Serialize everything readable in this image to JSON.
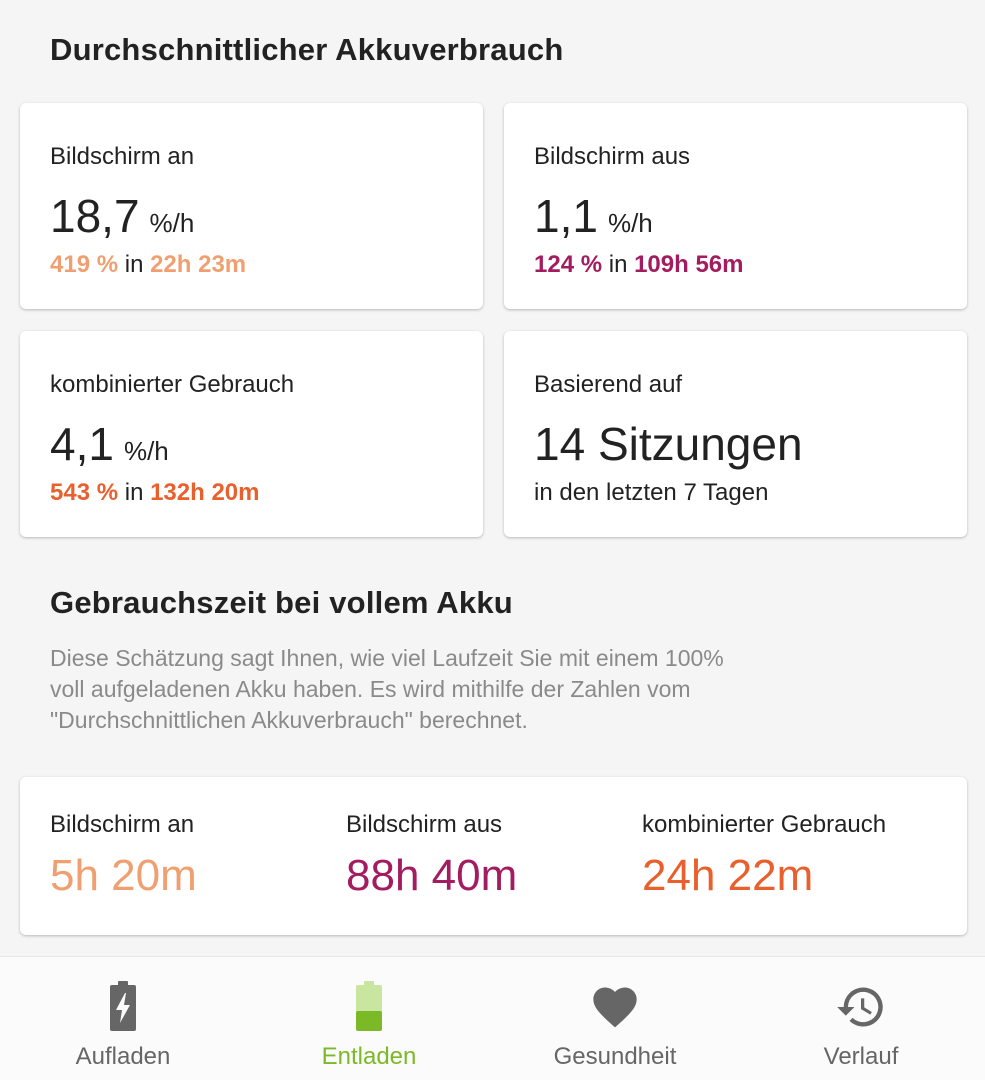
{
  "avg_usage": {
    "title": "Durchschnittlicher Akkuverbrauch",
    "screen_on": {
      "label": "Bildschirm an",
      "rate": "18,7",
      "unit": "%/h",
      "pct": "419 %",
      "in_word": " in ",
      "time": "22h 23m"
    },
    "screen_off": {
      "label": "Bildschirm aus",
      "rate": "1,1",
      "unit": "%/h",
      "pct": "124 %",
      "in_word": " in ",
      "time": "109h 56m"
    },
    "combined": {
      "label": "kombinierter Gebrauch",
      "rate": "4,1",
      "unit": "%/h",
      "pct": "543 %",
      "in_word": " in ",
      "time": "132h 20m"
    },
    "based_on": {
      "label": "Basierend auf",
      "sessions": "14 Sitzungen",
      "period": "in den letzten 7 Tagen"
    }
  },
  "full_battery": {
    "title": "Gebrauchszeit bei vollem Akku",
    "description_lines": [
      "Diese Schätzung sagt Ihnen, wie viel Laufzeit Sie mit einem 100%",
      "voll aufgeladenen Akku haben. Es wird mithilfe der Zahlen vom",
      "\"Durchschnittlichen Akkuverbrauch\" berechnet."
    ],
    "screen_on": {
      "label": "Bildschirm an",
      "value": "5h 20m"
    },
    "screen_off": {
      "label": "Bildschirm aus",
      "value": "88h 40m"
    },
    "combined": {
      "label": "kombinierter Gebrauch",
      "value": "24h 22m"
    }
  },
  "colors": {
    "screen_on": "#f0a070",
    "screen_off": "#a31c5f",
    "combined": "#e8602e",
    "active_tab": "#7cb926"
  },
  "nav": {
    "items": [
      {
        "label": "Aufladen",
        "icon": "battery-charging-icon"
      },
      {
        "label": "Entladen",
        "icon": "battery-discharging-icon",
        "active": true
      },
      {
        "label": "Gesundheit",
        "icon": "heart-icon"
      },
      {
        "label": "Verlauf",
        "icon": "history-icon"
      }
    ]
  }
}
